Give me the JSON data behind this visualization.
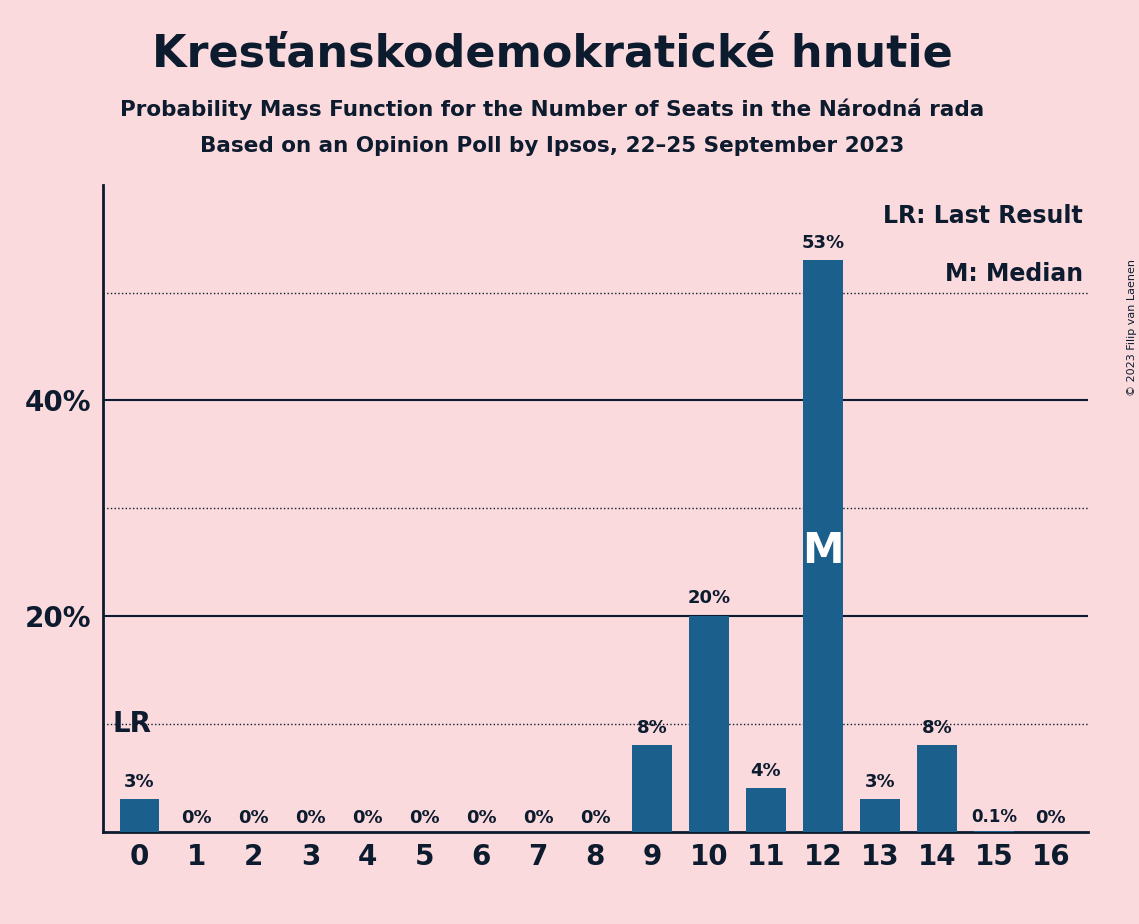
{
  "title": "Kresťanskodemokratické hnutie",
  "subtitle1": "Probability Mass Function for the Number of Seats in the Národná rada",
  "subtitle2": "Based on an Opinion Poll by Ipsos, 22–25 September 2023",
  "copyright": "© 2023 Filip van Laenen",
  "categories": [
    0,
    1,
    2,
    3,
    4,
    5,
    6,
    7,
    8,
    9,
    10,
    11,
    12,
    13,
    14,
    15,
    16
  ],
  "values": [
    3,
    0,
    0,
    0,
    0,
    0,
    0,
    0,
    0,
    8,
    20,
    4,
    53,
    3,
    8,
    0.1,
    0
  ],
  "bar_labels": [
    "3%",
    "0%",
    "0%",
    "0%",
    "0%",
    "0%",
    "0%",
    "0%",
    "0%",
    "8%",
    "20%",
    "4%",
    "53%",
    "3%",
    "8%",
    "0.1%",
    "0%"
  ],
  "bar_color": "#1b5f8c",
  "background_color": "#fadadd",
  "text_color": "#0d1b2e",
  "ylim": [
    0,
    60
  ],
  "solid_line_ticks": [
    20,
    40
  ],
  "dotted_line_ticks": [
    10,
    30,
    50
  ],
  "lr_line_pct": 10,
  "median_seat": 12,
  "lr_label": "LR: Last Result",
  "median_label": "M: Median",
  "lr_marker": "LR",
  "median_marker": "M",
  "ytick_labels": [
    "20%",
    "40%"
  ],
  "ytick_positions": [
    20,
    40
  ]
}
